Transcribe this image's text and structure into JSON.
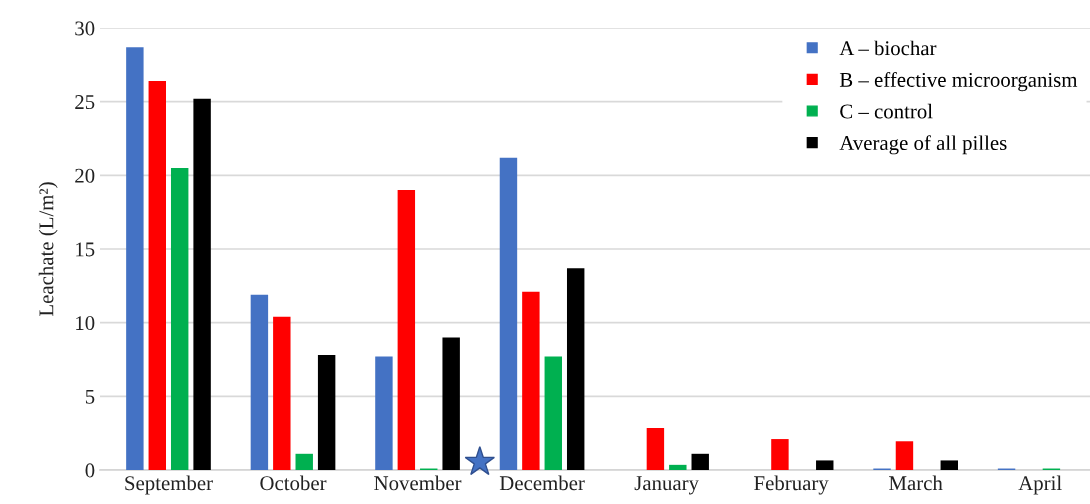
{
  "chart_data": {
    "type": "bar",
    "ylabel": "Leachate (L/m²)",
    "categories": [
      "September",
      "October",
      "November",
      "December",
      "January",
      "February",
      "March",
      "April"
    ],
    "series": [
      {
        "name": "A – biochar",
        "color": "#4472c4",
        "values": [
          28.7,
          11.9,
          7.7,
          21.2,
          0,
          0,
          0.1,
          0.1
        ]
      },
      {
        "name": "B – effective microorganism",
        "color": "#ff0000",
        "values": [
          26.4,
          10.4,
          19.0,
          12.1,
          2.85,
          2.1,
          1.95,
          0
        ]
      },
      {
        "name": "C – control",
        "color": "#00b050",
        "values": [
          20.5,
          1.1,
          0.1,
          7.7,
          0.35,
          0,
          0,
          0.1
        ]
      },
      {
        "name": "Average of all pilles",
        "color": "#000000",
        "values": [
          25.2,
          7.8,
          9.0,
          13.7,
          1.1,
          0.65,
          0.65,
          0
        ]
      }
    ],
    "ylim": [
      0,
      30
    ],
    "yticks": [
      0,
      5,
      10,
      15,
      20,
      25,
      30
    ],
    "grid": "y",
    "legend": "top right"
  }
}
